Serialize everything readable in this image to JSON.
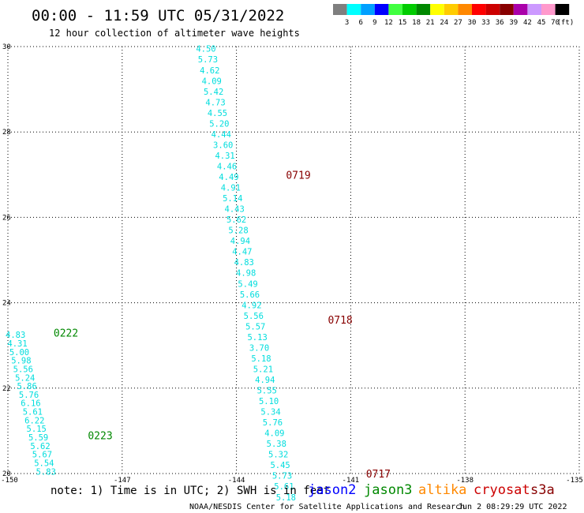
{
  "chart_data": {
    "type": "scatter",
    "title": "00:00 - 11:59 UTC 05/31/2022",
    "subtitle": "12 hour collection of altimeter wave heights",
    "xlim": [
      -150,
      -135
    ],
    "ylim": [
      20,
      30
    ],
    "x_ticks": [
      "-150",
      "-147",
      "-144",
      "-141",
      "-138",
      "-135"
    ],
    "y_ticks": [
      "20",
      "22",
      "24",
      "26",
      "28",
      "30"
    ],
    "grid": true,
    "color_scale": {
      "labels": [
        "3",
        "6",
        "9",
        "12",
        "15",
        "18",
        "21",
        "24",
        "27",
        "30",
        "33",
        "36",
        "39",
        "42",
        "45",
        "70",
        "(ft)"
      ],
      "colors": [
        "#7f7f7f",
        "#00ffff",
        "#00a0ff",
        "#0000ff",
        "#40ff40",
        "#00cc00",
        "#008800",
        "#ffff00",
        "#ffcc00",
        "#ff8800",
        "#ff0000",
        "#cc0000",
        "#880000",
        "#aa00aa",
        "#cc99ff",
        "#ff99cc",
        "#000000"
      ]
    },
    "track_labels": [
      {
        "text": "0719",
        "x": -142.7,
        "y": 27.0,
        "color": "#880000"
      },
      {
        "text": "0718",
        "x": -141.6,
        "y": 23.6,
        "color": "#880000"
      },
      {
        "text": "0717",
        "x": -140.6,
        "y": 20.0,
        "color": "#880000"
      },
      {
        "text": "0222",
        "x": -148.8,
        "y": 23.3,
        "color": "#008800"
      },
      {
        "text": "0223",
        "x": -147.9,
        "y": 20.9,
        "color": "#008800"
      }
    ],
    "series": [
      {
        "color": "#00dddd",
        "points": [
          {
            "x": -144.8,
            "y": 29.95,
            "v": "4.50"
          },
          {
            "x": -144.75,
            "y": 29.7,
            "v": "5.73"
          },
          {
            "x": -144.7,
            "y": 29.45,
            "v": "4.62"
          },
          {
            "x": -144.65,
            "y": 29.2,
            "v": "4.09"
          },
          {
            "x": -144.6,
            "y": 28.95,
            "v": "5.42"
          },
          {
            "x": -144.55,
            "y": 28.7,
            "v": "4.73"
          },
          {
            "x": -144.5,
            "y": 28.45,
            "v": "4.55"
          },
          {
            "x": -144.45,
            "y": 28.2,
            "v": "5.20"
          },
          {
            "x": -144.4,
            "y": 27.95,
            "v": "4.44"
          },
          {
            "x": -144.35,
            "y": 27.7,
            "v": "3.60"
          },
          {
            "x": -144.3,
            "y": 27.45,
            "v": "4.31"
          },
          {
            "x": -144.25,
            "y": 27.2,
            "v": "4.46"
          },
          {
            "x": -144.2,
            "y": 26.95,
            "v": "4.49"
          },
          {
            "x": -144.15,
            "y": 26.7,
            "v": "4.91"
          },
          {
            "x": -144.1,
            "y": 26.45,
            "v": "5.14"
          },
          {
            "x": -144.05,
            "y": 26.2,
            "v": "4.43"
          },
          {
            "x": -144.0,
            "y": 25.95,
            "v": "5.62"
          },
          {
            "x": -143.95,
            "y": 25.7,
            "v": "5.28"
          },
          {
            "x": -143.9,
            "y": 25.45,
            "v": "4.94"
          },
          {
            "x": -143.85,
            "y": 25.2,
            "v": "4.47"
          },
          {
            "x": -143.8,
            "y": 24.95,
            "v": "4.83"
          },
          {
            "x": -143.75,
            "y": 24.7,
            "v": "4.98"
          },
          {
            "x": -143.7,
            "y": 24.45,
            "v": "5.49"
          },
          {
            "x": -143.65,
            "y": 24.2,
            "v": "5.66"
          },
          {
            "x": -143.6,
            "y": 23.95,
            "v": "4.92"
          },
          {
            "x": -143.55,
            "y": 23.7,
            "v": "5.56"
          },
          {
            "x": -143.5,
            "y": 23.45,
            "v": "5.57"
          },
          {
            "x": -143.45,
            "y": 23.2,
            "v": "5.13"
          },
          {
            "x": -143.4,
            "y": 22.95,
            "v": "3.70"
          },
          {
            "x": -143.35,
            "y": 22.7,
            "v": "5.18"
          },
          {
            "x": -143.3,
            "y": 22.45,
            "v": "5.21"
          },
          {
            "x": -143.25,
            "y": 22.2,
            "v": "4.94"
          },
          {
            "x": -143.2,
            "y": 21.95,
            "v": "5.55"
          },
          {
            "x": -143.15,
            "y": 21.7,
            "v": "5.10"
          },
          {
            "x": -143.1,
            "y": 21.45,
            "v": "5.34"
          },
          {
            "x": -143.05,
            "y": 21.2,
            "v": "5.76"
          },
          {
            "x": -143.0,
            "y": 20.95,
            "v": "4.09"
          },
          {
            "x": -142.95,
            "y": 20.7,
            "v": "5.38"
          },
          {
            "x": -142.9,
            "y": 20.45,
            "v": "5.32"
          },
          {
            "x": -142.85,
            "y": 20.2,
            "v": "5.45"
          },
          {
            "x": -142.8,
            "y": 19.95,
            "v": "5.73"
          },
          {
            "x": -142.75,
            "y": 19.7,
            "v": "5.61"
          },
          {
            "x": -142.7,
            "y": 19.45,
            "v": "5.18"
          }
        ]
      },
      {
        "color": "#00dddd",
        "points": [
          {
            "x": -149.8,
            "y": 23.25,
            "v": "4.83"
          },
          {
            "x": -149.75,
            "y": 23.05,
            "v": "4.31"
          },
          {
            "x": -149.7,
            "y": 22.85,
            "v": "5.00"
          },
          {
            "x": -149.65,
            "y": 22.65,
            "v": "5.98"
          },
          {
            "x": -149.6,
            "y": 22.45,
            "v": "5.56"
          },
          {
            "x": -149.55,
            "y": 22.25,
            "v": "5.24"
          },
          {
            "x": -149.5,
            "y": 22.05,
            "v": "5.86"
          },
          {
            "x": -149.45,
            "y": 21.85,
            "v": "5.76"
          },
          {
            "x": -149.4,
            "y": 21.65,
            "v": "6.16"
          },
          {
            "x": -149.35,
            "y": 21.45,
            "v": "5.61"
          },
          {
            "x": -149.3,
            "y": 21.25,
            "v": "6.22"
          },
          {
            "x": -149.25,
            "y": 21.05,
            "v": "5.15"
          },
          {
            "x": -149.2,
            "y": 20.85,
            "v": "5.59"
          },
          {
            "x": -149.15,
            "y": 20.65,
            "v": "5.62"
          },
          {
            "x": -149.1,
            "y": 20.45,
            "v": "5.67"
          },
          {
            "x": -149.05,
            "y": 20.25,
            "v": "5.54"
          },
          {
            "x": -149.0,
            "y": 20.05,
            "v": "5.83"
          }
        ]
      }
    ]
  },
  "footer": {
    "note": "note: 1) Time is in UTC; 2) SWH is in feet",
    "satellites": [
      {
        "name": "jason2",
        "color": "#0000ff"
      },
      {
        "name": "jason3",
        "color": "#008800"
      },
      {
        "name": "altika",
        "color": "#ff8800"
      },
      {
        "name": "cryosat",
        "color": "#cc0000"
      },
      {
        "name": "s3a",
        "color": "#880000"
      }
    ],
    "credit": "NOAA/NESDIS Center for Satellite Applications and Research",
    "timestamp": "Jun  2 08:29:29 UTC 2022"
  }
}
